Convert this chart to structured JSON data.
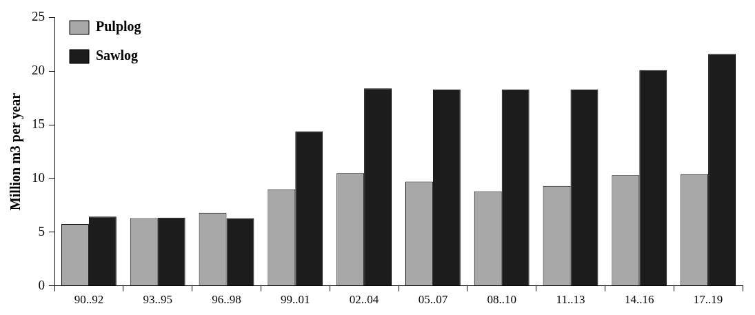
{
  "chart_data": {
    "type": "bar",
    "ylabel": "Million m3 per year",
    "categories": [
      "90..92",
      "93..95",
      "96..98",
      "99..01",
      "02..04",
      "05..07",
      "08..10",
      "11..13",
      "14..16",
      "17..19"
    ],
    "series": [
      {
        "name": "Pulplog",
        "color": "#a8a8a8",
        "values": [
          5.75,
          6.3,
          6.8,
          9.0,
          10.5,
          9.7,
          8.8,
          9.3,
          10.3,
          10.4
        ]
      },
      {
        "name": "Sawlog",
        "color": "#1c1c1c",
        "values": [
          6.45,
          6.35,
          6.3,
          14.4,
          18.4,
          18.3,
          18.3,
          18.3,
          20.1,
          21.6
        ]
      }
    ],
    "ylim": [
      0,
      25
    ],
    "yticks": [
      0,
      5,
      10,
      15,
      20,
      25
    ],
    "grid": false,
    "legend": "top left"
  }
}
